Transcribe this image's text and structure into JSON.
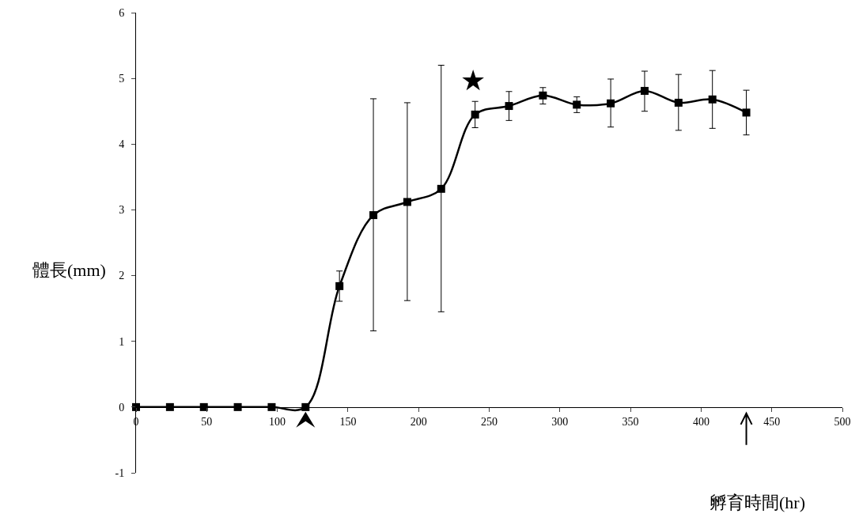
{
  "chart_data": {
    "type": "line",
    "xlabel": "孵育時間(hr)",
    "ylabel": "體長(mm)",
    "x": [
      0,
      24,
      48,
      72,
      96,
      120,
      144,
      168,
      192,
      216,
      240,
      264,
      288,
      312,
      336,
      360,
      384,
      408,
      432
    ],
    "values": [
      0,
      0,
      0,
      0,
      0,
      0,
      1.84,
      2.92,
      3.12,
      3.32,
      4.45,
      4.58,
      4.74,
      4.6,
      4.62,
      4.81,
      4.63,
      4.68,
      4.48
    ],
    "errors": [
      null,
      null,
      null,
      null,
      null,
      null,
      [
        1.61,
        2.07
      ],
      [
        1.16,
        4.69
      ],
      [
        1.62,
        4.63
      ],
      [
        1.45,
        5.2
      ],
      [
        4.25,
        4.65
      ],
      [
        4.36,
        4.8
      ],
      [
        4.61,
        4.86
      ],
      [
        4.48,
        4.72
      ],
      [
        4.26,
        4.99
      ],
      [
        4.5,
        5.11
      ],
      [
        4.21,
        5.06
      ],
      [
        4.24,
        5.12
      ],
      [
        4.14,
        4.82
      ]
    ],
    "color": "#000000",
    "marker": "square",
    "line_style": "solid",
    "xlim": [
      0,
      500
    ],
    "xticks": [
      0,
      50,
      100,
      150,
      200,
      250,
      300,
      350,
      400,
      450,
      500
    ],
    "ylim": [
      -1,
      6
    ],
    "yticks": [
      -1,
      0,
      1,
      2,
      3,
      4,
      5,
      6
    ],
    "annotations": [
      "★"
    ]
  }
}
